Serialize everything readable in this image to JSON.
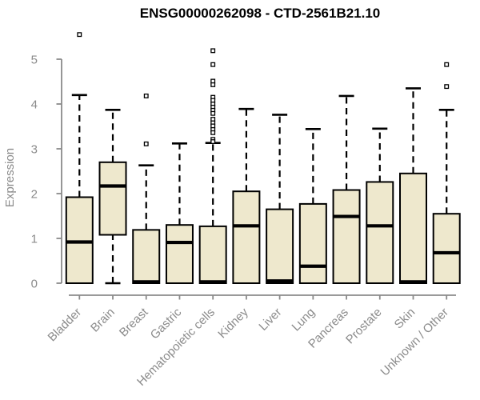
{
  "chart_data": {
    "type": "boxplot",
    "title": "ENSG00000262098 - CTD-2561B21.10",
    "xlabel": "",
    "ylabel": "Expression",
    "ylim": [
      0,
      5
    ],
    "yticks": [
      0,
      1,
      2,
      3,
      4,
      5
    ],
    "grid": false,
    "legend": "none",
    "categories": [
      "Bladder",
      "Brain",
      "Breast",
      "Gastric",
      "Hematopoietic cells",
      "Kidney",
      "Liver",
      "Lung",
      "Pancreas",
      "Prostate",
      "Skin",
      "Unknown / Other"
    ],
    "boxes": [
      {
        "category": "Bladder",
        "low": 0,
        "q1": 0,
        "median": 0.92,
        "q3": 1.92,
        "high": 4.2,
        "outliers": [
          5.55
        ]
      },
      {
        "category": "Brain",
        "low": 0,
        "q1": 1.08,
        "median": 2.17,
        "q3": 2.7,
        "high": 3.87,
        "outliers": []
      },
      {
        "category": "Breast",
        "low": 0,
        "q1": 0,
        "median": 0.03,
        "q3": 1.19,
        "high": 2.63,
        "outliers": [
          4.18,
          3.11
        ]
      },
      {
        "category": "Gastric",
        "low": 0,
        "q1": 0,
        "median": 0.91,
        "q3": 1.3,
        "high": 3.12,
        "outliers": []
      },
      {
        "category": "Hematopoietic cells",
        "low": 0,
        "q1": 0,
        "median": 0.03,
        "q3": 1.27,
        "high": 3.13,
        "outliers": [
          5.19,
          4.88,
          4.51,
          4.43,
          4.15,
          4.08,
          4.0,
          3.93,
          3.86,
          3.79,
          3.66,
          3.58,
          3.51,
          3.43,
          3.36,
          3.21,
          3.16
        ]
      },
      {
        "category": "Kidney",
        "low": 0,
        "q1": 0,
        "median": 1.28,
        "q3": 2.05,
        "high": 3.89,
        "outliers": []
      },
      {
        "category": "Liver",
        "low": 0,
        "q1": 0,
        "median": 0.05,
        "q3": 1.65,
        "high": 3.76,
        "outliers": []
      },
      {
        "category": "Lung",
        "low": 0,
        "q1": 0,
        "median": 0.38,
        "q3": 1.77,
        "high": 3.44,
        "outliers": []
      },
      {
        "category": "Pancreas",
        "low": 0,
        "q1": 0,
        "median": 1.49,
        "q3": 2.08,
        "high": 4.18,
        "outliers": []
      },
      {
        "category": "Prostate",
        "low": 0,
        "q1": 0,
        "median": 1.28,
        "q3": 2.26,
        "high": 3.45,
        "outliers": []
      },
      {
        "category": "Skin",
        "low": 0,
        "q1": 0,
        "median": 0.03,
        "q3": 2.45,
        "high": 4.35,
        "outliers": []
      },
      {
        "category": "Unknown / Other",
        "low": 0,
        "q1": 0,
        "median": 0.68,
        "q3": 1.55,
        "high": 3.87,
        "outliers": [
          4.88,
          4.39
        ]
      }
    ],
    "colors": {
      "box_fill": "#EEE8CD",
      "box_border": "#000000",
      "median": "#000000",
      "whisker": "#000000",
      "outlier_stroke": "#000000",
      "outlier_fill": "#FFFFFF",
      "axis": "#8B8B8B",
      "tick_label": "#8B8B8B",
      "axis_label": "#8B8B8B",
      "title": "#000000",
      "background": "#FFFFFF"
    }
  }
}
